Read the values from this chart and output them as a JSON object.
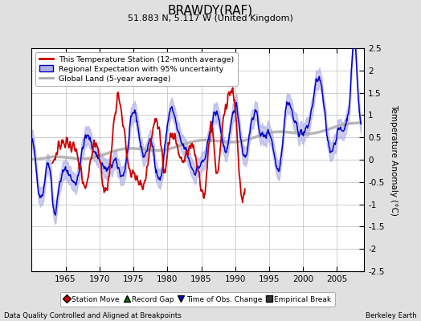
{
  "title": "BRAWDY(RAF)",
  "subtitle": "51.883 N, 5.117 W (United Kingdom)",
  "ylabel": "Temperature Anomaly (°C)",
  "xlabel_left": "Data Quality Controlled and Aligned at Breakpoints",
  "xlabel_right": "Berkeley Earth",
  "ylim": [
    -2.5,
    2.5
  ],
  "xlim": [
    1960,
    2009
  ],
  "yticks": [
    -2.5,
    -2,
    -1.5,
    -1,
    -0.5,
    0,
    0.5,
    1,
    1.5,
    2,
    2.5
  ],
  "xticks": [
    1965,
    1970,
    1975,
    1980,
    1985,
    1990,
    1995,
    2000,
    2005
  ],
  "bg_color": "#e0e0e0",
  "plot_bg_color": "#ffffff",
  "grid_color": "#c8c8c8",
  "red_color": "#cc0000",
  "blue_color": "#0000cc",
  "blue_fill_color": "#b0b0e8",
  "gray_color": "#aaaaaa",
  "legend_items": [
    "This Temperature Station (12-month average)",
    "Regional Expectation with 95% uncertainty",
    "Global Land (5-year average)"
  ],
  "bottom_legend_items": [
    [
      "Station Move",
      "#cc0000",
      "D"
    ],
    [
      "Record Gap",
      "#007700",
      "^"
    ],
    [
      "Time of Obs. Change",
      "#0000cc",
      "v"
    ],
    [
      "Empirical Break",
      "#333333",
      "s"
    ]
  ]
}
